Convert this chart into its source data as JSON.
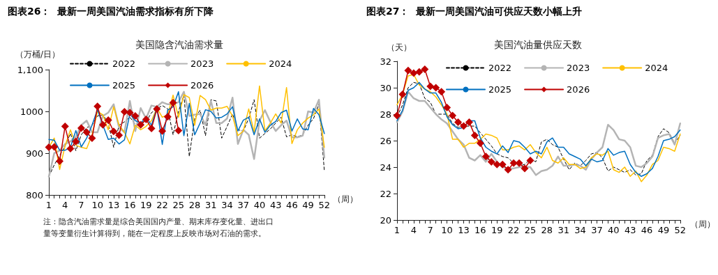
{
  "chart_data": [
    {
      "type": "line",
      "title": "图表26：  最新一周美国汽油需求指标有所下降",
      "subtitle": "美国隐含汽油需求量",
      "ylabel": "（万桶/日）",
      "xlabel": "（周）",
      "annotations": [
        "注：隐含汽油需求量是综合美国国内产量、期末库存变化量、进出口量等变量衍生计算得到，能在一定程度上反映市场对石油的需求。"
      ],
      "categories": [
        "1",
        null,
        null,
        "4",
        null,
        null,
        "7",
        null,
        null,
        "10",
        null,
        null,
        "13",
        null,
        null,
        "16",
        null,
        null,
        "19",
        null,
        null,
        "22",
        null,
        null,
        "25",
        null,
        null,
        "28",
        null,
        null,
        "31",
        null,
        null,
        "34",
        null,
        null,
        "37",
        null,
        null,
        "40",
        null,
        null,
        "43",
        null,
        null,
        "46",
        null,
        null,
        "49",
        null,
        null,
        "52"
      ],
      "ylim": [
        800,
        1100
      ],
      "yticks": [
        800,
        900,
        1000,
        {
          "value": 1100,
          "label": "1,100"
        }
      ],
      "grid": false,
      "legend": "top",
      "series": [
        {
          "name": "2022",
          "color": "#000000",
          "line_style": "dashed",
          "marker": "none",
          "values": [
            844,
            872,
            894,
            917,
            947,
            906,
            944,
            961,
            967,
            989,
            992,
            972,
            914,
            967,
            975,
            986,
            969,
            972,
            975,
            997,
            1006,
            1014,
            1006,
            944,
            1000,
            1039,
            892,
            983,
            1003,
            942,
            1028,
            1025,
            936,
            964,
            994,
            956,
            953,
            983,
            1028,
            936,
            947,
            958,
            972,
            986,
            939,
            944,
            939,
            944,
            967,
            983,
            1017,
            858
          ]
        },
        {
          "name": "2023",
          "color": "#b4b4b4",
          "line_style": "solid",
          "marker": "none",
          "values": [
            844,
            900,
            906,
            922,
            928,
            939,
            967,
            978,
            950,
            950,
            989,
            997,
            1017,
            961,
            950,
            1025,
            953,
            1008,
            983,
            1014,
            1011,
            1022,
            1017,
            1017,
            1022,
            1047,
            989,
            992,
            994,
            967,
            1025,
            972,
            972,
            983,
            1033,
            922,
            956,
            944,
            886,
            978,
            1003,
            975,
            953,
            967,
            978,
            938,
            938,
            942,
            1000,
            997,
            1028,
            889
          ]
        },
        {
          "name": "2024",
          "color": "#ffc000",
          "line_style": "solid",
          "marker": "none",
          "values": [
            914,
            936,
            861,
            917,
            956,
            919,
            914,
            911,
            944,
            1000,
            992,
            956,
            1011,
            967,
            950,
            922,
            967,
            956,
            964,
            978,
            1008,
            986,
            992,
            1039,
            986,
            1040,
            1033,
            967,
            1038,
            1028,
            1003,
            1008,
            1008,
            1012,
            989,
            942,
            953,
            1006,
            950,
            1061,
            953,
            972,
            994,
            972,
            1057,
            923,
            956,
            972,
            984,
            992,
            1006,
            914
          ]
        },
        {
          "name": "2025",
          "color": "#0070c0",
          "line_style": "solid",
          "marker": "none",
          "values": [
            933,
            931,
            907,
            907,
            914,
            954,
            915,
            936,
            967,
            1004,
            967,
            933,
            936,
            922,
            932,
            994,
            978,
            972,
            986,
            967,
            1008,
            921,
            1003,
            1011,
            1047,
            942,
            1019,
            944,
            972,
            1004,
            1000,
            984,
            986,
            994,
            1011,
            953,
            979,
            986,
            944,
            982,
            950,
            967,
            976,
            997,
            1003,
            953,
            982,
            958,
            956,
            1007,
            992,
            947
          ]
        },
        {
          "name": "2026",
          "color": "#c00000",
          "line_style": "solid",
          "marker": "diamond",
          "values": [
            914,
            915,
            881,
            964,
            911,
            928,
            960,
            950,
            936,
            1012,
            968,
            979,
            952,
            943,
            999,
            997,
            989,
            968,
            981,
            959,
            1006,
            953,
            987,
            1021,
            954,
            null,
            null,
            null,
            null,
            null,
            null,
            null,
            null,
            null,
            null,
            null,
            null,
            null,
            null,
            null,
            null,
            null,
            null,
            null,
            null,
            null,
            null,
            null,
            null,
            null,
            null,
            null
          ]
        }
      ]
    },
    {
      "type": "line",
      "title": "图表27：  最新一周美国汽油可供应天数小幅上升",
      "subtitle": "美国汽油量供应天数",
      "ylabel": "（天）",
      "xlabel": "（周）",
      "categories": [
        "1",
        null,
        null,
        "4",
        null,
        null,
        "7",
        null,
        null,
        "10",
        null,
        null,
        "13",
        null,
        null,
        "16",
        null,
        null,
        "19",
        null,
        null,
        "22",
        null,
        null,
        "25",
        null,
        null,
        "28",
        null,
        null,
        "31",
        null,
        null,
        "34",
        null,
        null,
        "37",
        null,
        null,
        "40",
        null,
        null,
        "43",
        null,
        null,
        "46",
        null,
        null,
        "49",
        null,
        null,
        "52"
      ],
      "ylim": [
        20,
        32
      ],
      "yticks": [
        20,
        22,
        24,
        26,
        28,
        30,
        32
      ],
      "grid": false,
      "legend": "top",
      "series": [
        {
          "name": "2022",
          "color": "#000000",
          "line_style": "dashed",
          "marker": "none",
          "values": [
            27.8,
            28.7,
            30.0,
            30.4,
            30.3,
            29.2,
            28.9,
            28.0,
            28.0,
            28.0,
            27.3,
            27.0,
            27.1,
            27.1,
            27.1,
            26.6,
            26.1,
            25.6,
            25.0,
            24.8,
            24.7,
            24.3,
            24.1,
            24.2,
            24.6,
            24.4,
            25.9,
            26.1,
            25.7,
            25.5,
            24.6,
            23.8,
            24.3,
            24.1,
            24.5,
            25.0,
            25.1,
            24.7,
            23.7,
            24.0,
            23.8,
            23.6,
            23.8,
            23.4,
            23.5,
            24.5,
            24.9,
            26.3,
            26.9,
            26.6,
            25.8,
            26.4
          ]
        },
        {
          "name": "2023",
          "color": "#b4b4b4",
          "line_style": "solid",
          "marker": "none",
          "values": [
            27.4,
            28.2,
            29.7,
            29.2,
            29.0,
            29.0,
            28.5,
            28.0,
            27.6,
            27.3,
            26.7,
            26.1,
            25.7,
            24.7,
            24.5,
            24.9,
            24.4,
            25.0,
            24.4,
            24.0,
            23.9,
            23.9,
            24.0,
            24.0,
            24.0,
            23.4,
            23.7,
            23.8,
            24.1,
            24.8,
            24.1,
            24.1,
            24.2,
            24.1,
            23.8,
            24.6,
            25.1,
            25.5,
            27.2,
            26.8,
            26.1,
            26.0,
            25.5,
            24.1,
            24.0,
            24.3,
            24.8,
            26.2,
            26.4,
            26.5,
            25.7,
            27.3
          ]
        },
        {
          "name": "2024",
          "color": "#ffc000",
          "line_style": "solid",
          "marker": "none",
          "values": [
            28.7,
            29.5,
            30.9,
            31.0,
            30.2,
            29.9,
            29.7,
            29.3,
            28.7,
            28.0,
            26.1,
            26.1,
            25.5,
            25.8,
            25.8,
            26.1,
            26.5,
            26.4,
            26.2,
            25.3,
            25.3,
            25.5,
            25.6,
            25.3,
            25.7,
            25.1,
            24.7,
            25.5,
            24.5,
            24.3,
            24.7,
            24.2,
            24.2,
            23.9,
            24.0,
            24.7,
            25.0,
            24.9,
            25.2,
            23.8,
            23.6,
            24.0,
            23.3,
            23.7,
            22.9,
            23.4,
            24.2,
            24.5,
            25.5,
            25.4,
            25.2,
            26.5
          ]
        },
        {
          "name": "2025",
          "color": "#0070c0",
          "line_style": "solid",
          "marker": "none",
          "values": [
            27.5,
            28.3,
            29.8,
            30.0,
            30.4,
            29.9,
            29.6,
            29.6,
            28.9,
            27.8,
            27.2,
            26.9,
            27.0,
            27.5,
            27.5,
            26.2,
            25.5,
            25.2,
            25.0,
            25.6,
            25.1,
            26.0,
            25.9,
            25.5,
            25.0,
            25.2,
            25.0,
            25.9,
            26.2,
            25.5,
            25.5,
            25.0,
            24.8,
            24.6,
            24.1,
            24.6,
            24.4,
            24.5,
            25.4,
            24.9,
            25.1,
            25.2,
            24.2,
            23.6,
            23.3,
            23.5,
            23.9,
            24.8,
            26.0,
            26.1,
            26.3,
            26.8
          ]
        },
        {
          "name": "2026",
          "color": "#c00000",
          "line_style": "solid",
          "marker": "diamond",
          "values": [
            27.9,
            29.5,
            31.3,
            31.1,
            31.2,
            31.4,
            30.1,
            30.0,
            29.7,
            28.5,
            27.9,
            27.4,
            27.1,
            27.4,
            26.4,
            25.8,
            24.8,
            24.4,
            24.2,
            24.2,
            23.8,
            24.3,
            24.3,
            23.9,
            24.5,
            null,
            null,
            null,
            null,
            null,
            null,
            null,
            null,
            null,
            null,
            null,
            null,
            null,
            null,
            null,
            null,
            null,
            null,
            null,
            null,
            null,
            null,
            null,
            null,
            null,
            null,
            null
          ]
        }
      ]
    }
  ]
}
